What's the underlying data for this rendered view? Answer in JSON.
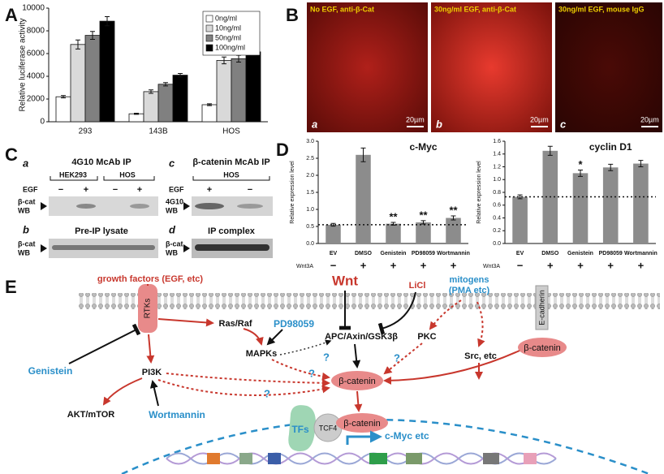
{
  "panel_labels": [
    "A",
    "B",
    "C",
    "D",
    "E"
  ],
  "chart_data": [
    {
      "type": "bar",
      "ylabel": "Relative luciferase activity",
      "categories": [
        "293",
        "143B",
        "HOS"
      ],
      "series": [
        {
          "name": "0ng/ml",
          "color": "#ffffff",
          "values": [
            2200,
            700,
            1500
          ],
          "errors": [
            100,
            50,
            80
          ]
        },
        {
          "name": "10ng/ml",
          "color": "#d9d9d9",
          "values": [
            6800,
            2650,
            5400
          ],
          "errors": [
            400,
            150,
            300
          ]
        },
        {
          "name": "50ng/ml",
          "color": "#808080",
          "values": [
            7600,
            3300,
            5550
          ],
          "errors": [
            350,
            150,
            300
          ]
        },
        {
          "name": "100ng/ml",
          "color": "#000000",
          "values": [
            8850,
            4100,
            6150
          ],
          "errors": [
            400,
            150,
            300
          ]
        }
      ],
      "ylim": [
        0,
        10000
      ],
      "yticks": [
        0,
        2000,
        4000,
        6000,
        8000,
        10000
      ],
      "legend": "upper right"
    },
    {
      "type": "bar",
      "title": "c-Myc",
      "ylabel": "Relative expression level",
      "categories": [
        "EV",
        "DMSO",
        "Genistein",
        "PD98059",
        "Wortmannin"
      ],
      "values": [
        0.55,
        2.6,
        0.58,
        0.62,
        0.75
      ],
      "errors": [
        0.04,
        0.2,
        0.04,
        0.05,
        0.06
      ],
      "color": "#8c8c8c",
      "annotations": [
        null,
        null,
        "**",
        "**",
        "**"
      ],
      "reference_line": 0.55,
      "treatment_label": "Wnt3A",
      "treatment": [
        "−",
        "+",
        "+",
        "+",
        "+"
      ],
      "ylim": [
        0,
        3
      ],
      "yticks": [
        {
          "value": 0,
          "label": "0.0"
        },
        {
          "value": 0.5,
          "label": "0.5"
        },
        {
          "value": 1,
          "label": "1.0"
        },
        {
          "value": 1.5,
          "label": "1.5"
        },
        {
          "value": 2,
          "label": "2.0"
        },
        {
          "value": 2.5,
          "label": "2.5"
        },
        {
          "value": 3,
          "label": "3.0"
        }
      ]
    },
    {
      "type": "bar",
      "title": "cyclin D1",
      "ylabel": "Relative expression level",
      "categories": [
        "EV",
        "DMSO",
        "Genistein",
        "PD98059",
        "Wortmannin"
      ],
      "values": [
        0.73,
        1.45,
        1.1,
        1.19,
        1.25
      ],
      "errors": [
        0.03,
        0.07,
        0.05,
        0.05,
        0.05
      ],
      "color": "#8c8c8c",
      "annotations": [
        null,
        null,
        "*",
        null,
        null
      ],
      "reference_line": 0.73,
      "treatment_label": "Wnt3A",
      "treatment": [
        "−",
        "+",
        "+",
        "+",
        "+"
      ],
      "ylim": [
        0,
        1.6
      ],
      "yticks": [
        {
          "value": 0,
          "label": "0.0"
        },
        {
          "value": 0.2,
          "label": "0.2"
        },
        {
          "value": 0.4,
          "label": "0.4"
        },
        {
          "value": 0.6,
          "label": "0.6"
        },
        {
          "value": 0.8,
          "label": "0.8"
        },
        {
          "value": 1,
          "label": "1.0"
        },
        {
          "value": 1.2,
          "label": "1.2"
        },
        {
          "value": 1.4,
          "label": "1.4"
        },
        {
          "value": 1.6,
          "label": "1.6"
        }
      ]
    }
  ],
  "panel_b": {
    "images": [
      {
        "caption": "No EGF, anti-β-Cat",
        "letter": "a",
        "scale": "20µm"
      },
      {
        "caption": "30ng/ml EGF, anti-β-Cat",
        "letter": "b",
        "scale": "20µm"
      },
      {
        "caption": "30ng/ml EGF, mouse IgG",
        "letter": "c",
        "scale": "20µm"
      }
    ]
  },
  "panel_c": {
    "blots": [
      {
        "letter": "a",
        "title": "4G10 McAb IP",
        "groups": [
          "HEK293",
          "HOS"
        ],
        "treatment": "EGF",
        "lanes": [
          "−",
          "+",
          "−",
          "+"
        ],
        "probe": [
          "β-cat",
          "WB"
        ]
      },
      {
        "letter": "b",
        "title": "Pre-IP lysate",
        "probe": [
          "β-cat",
          "WB"
        ]
      },
      {
        "letter": "c",
        "title": "β-catenin McAb IP",
        "groups": [
          "HOS"
        ],
        "treatment": "EGF",
        "lanes": [
          "+",
          "−"
        ],
        "probe": [
          "4G10",
          "WB"
        ]
      },
      {
        "letter": "d",
        "title": "IP complex",
        "probe": [
          "β-cat",
          "WB"
        ]
      }
    ]
  },
  "panel_e": {
    "nodes": [
      "growth factors (EGF, etc)",
      "RTKs",
      "Ras/Raf",
      "PD98059",
      "MAPKs",
      "Genistein",
      "PI3K",
      "AKT/mTOR",
      "Wortmannin",
      "Wnt",
      "LiCl",
      "mitogens",
      "(PMA etc)",
      "APC/Axin/GSK3β",
      "PKC",
      "Src, etc",
      "E-cadherin",
      "β-catenin",
      "β-catenin",
      "β-catenin",
      "TFs",
      "TCF4",
      "c-Myc etc",
      "?",
      "?",
      "?",
      "?"
    ]
  }
}
